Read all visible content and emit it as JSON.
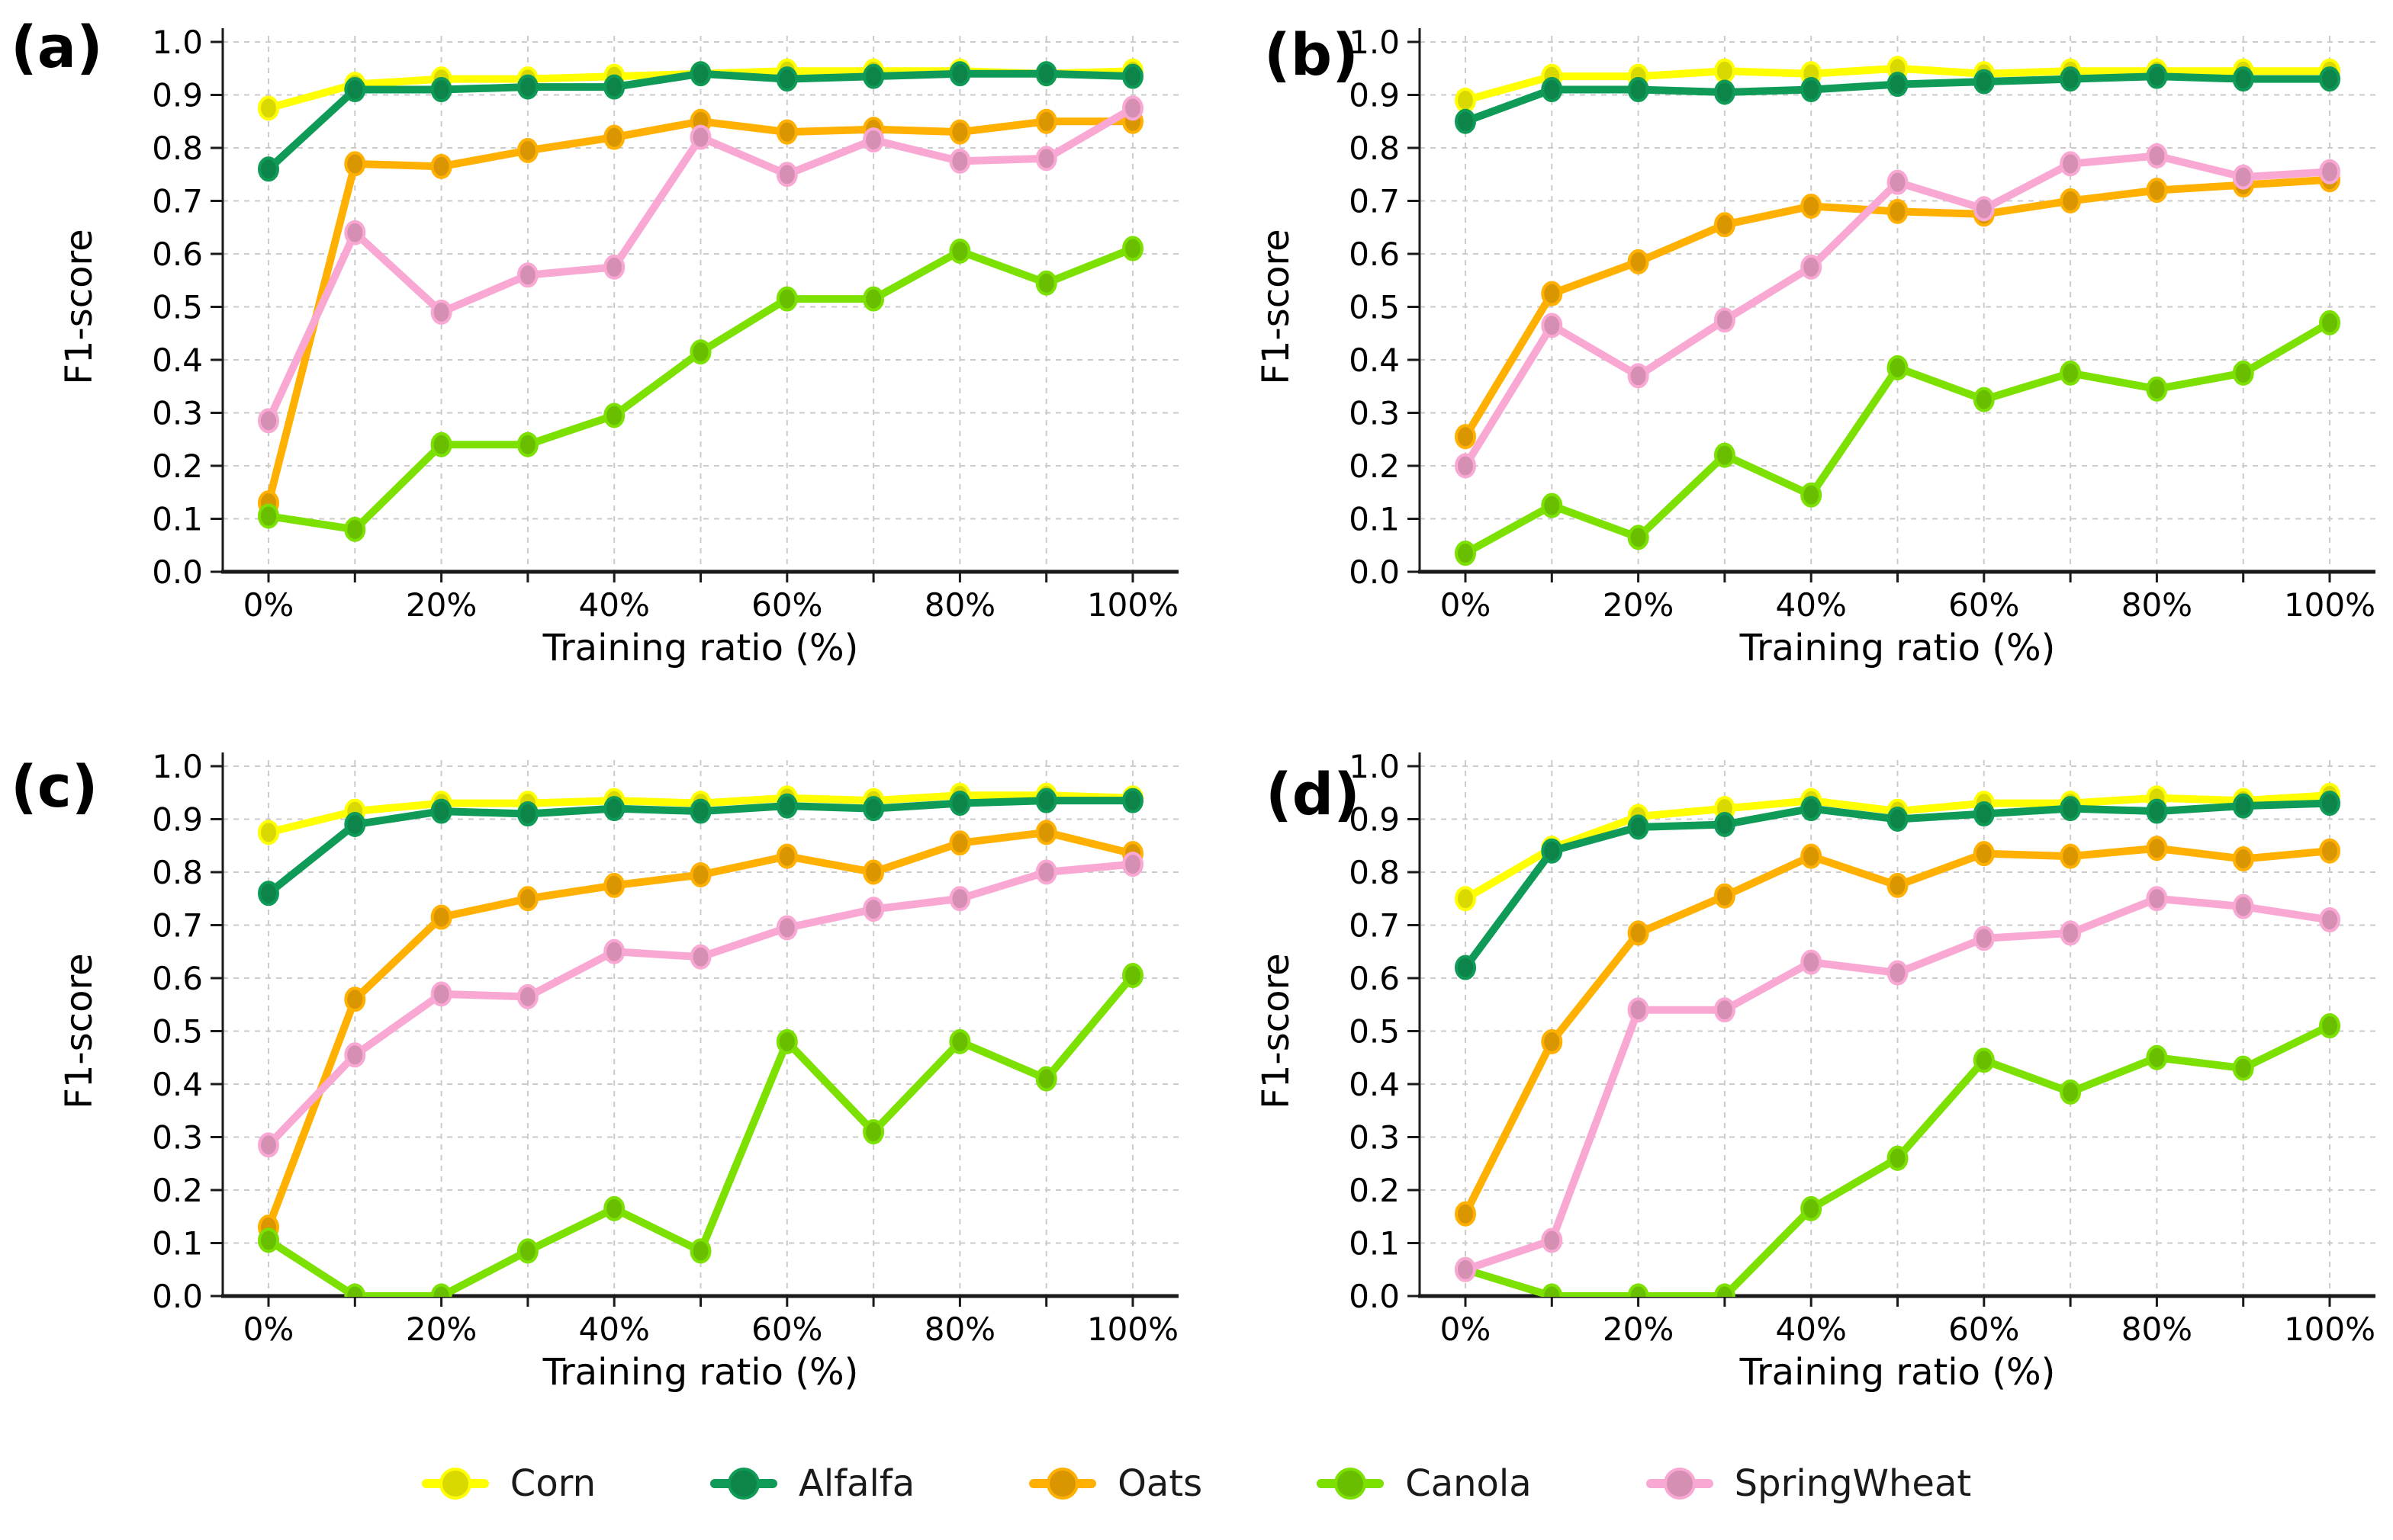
{
  "figure": {
    "background": "#ffffff",
    "text_color": "#000000",
    "grid_color": "#cbcbcb",
    "spine_color": "#1a1a1a"
  },
  "axes": {
    "xlabel": "Training ratio (%)",
    "ylabel": "F1-score",
    "x_ticks": [
      0,
      10,
      20,
      30,
      40,
      50,
      60,
      70,
      80,
      90,
      100
    ],
    "x_tick_labels": [
      "0%",
      "",
      "20%",
      "",
      "40%",
      "",
      "60%",
      "",
      "80%",
      "",
      "100%"
    ],
    "y_ticks": [
      0.0,
      0.1,
      0.2,
      0.3,
      0.4,
      0.5,
      0.6,
      0.7,
      0.8,
      0.9,
      1.0
    ],
    "y_tick_labels": [
      "0.0",
      "0.1",
      "0.2",
      "0.3",
      "0.4",
      "0.5",
      "0.6",
      "0.7",
      "0.8",
      "0.9",
      "1.0"
    ],
    "ylim": [
      0.0,
      1.0
    ],
    "grid": "dashed both axes"
  },
  "legend": {
    "position": "bottom-center",
    "entries": [
      {
        "label": "Corn",
        "color": "#ffff00"
      },
      {
        "label": "Alfalfa",
        "color": "#0f9b57"
      },
      {
        "label": "Oats",
        "color": "#ffb000"
      },
      {
        "label": "Canola",
        "color": "#7ce000"
      },
      {
        "label": "SpringWheat",
        "color": "#f9a8d3"
      }
    ]
  },
  "chart_data": [
    {
      "type": "line",
      "panel_label": "(a)",
      "xlabel": "Training ratio (%)",
      "ylabel": "F1-score",
      "x": [
        0,
        10,
        20,
        30,
        40,
        50,
        60,
        70,
        80,
        90,
        100
      ],
      "series": [
        {
          "name": "Corn",
          "color": "#ffff00",
          "values": [
            0.875,
            0.92,
            0.93,
            0.93,
            0.935,
            0.94,
            0.945,
            0.945,
            0.945,
            0.94,
            0.945
          ]
        },
        {
          "name": "Alfalfa",
          "color": "#0f9b57",
          "values": [
            0.76,
            0.91,
            0.91,
            0.915,
            0.915,
            0.94,
            0.93,
            0.935,
            0.94,
            0.94,
            0.935
          ]
        },
        {
          "name": "Oats",
          "color": "#ffb000",
          "values": [
            0.13,
            0.77,
            0.765,
            0.795,
            0.82,
            0.85,
            0.83,
            0.835,
            0.83,
            0.85,
            0.85
          ]
        },
        {
          "name": "Canola",
          "color": "#7ce000",
          "values": [
            0.105,
            0.08,
            0.24,
            0.24,
            0.295,
            0.415,
            0.515,
            0.515,
            0.605,
            0.545,
            0.61
          ]
        },
        {
          "name": "SpringWheat",
          "color": "#f9a8d3",
          "values": [
            0.285,
            0.64,
            0.49,
            0.56,
            0.575,
            0.82,
            0.75,
            0.815,
            0.775,
            0.78,
            0.875
          ]
        }
      ]
    },
    {
      "type": "line",
      "panel_label": "(b)",
      "xlabel": "Training ratio (%)",
      "ylabel": "F1-score",
      "x": [
        0,
        10,
        20,
        30,
        40,
        50,
        60,
        70,
        80,
        90,
        100
      ],
      "series": [
        {
          "name": "Corn",
          "color": "#ffff00",
          "values": [
            0.89,
            0.935,
            0.935,
            0.945,
            0.94,
            0.95,
            0.94,
            0.945,
            0.945,
            0.945,
            0.945
          ]
        },
        {
          "name": "Alfalfa",
          "color": "#0f9b57",
          "values": [
            0.85,
            0.91,
            0.91,
            0.905,
            0.91,
            0.92,
            0.925,
            0.93,
            0.935,
            0.93,
            0.93
          ]
        },
        {
          "name": "Oats",
          "color": "#ffb000",
          "values": [
            0.255,
            0.525,
            0.585,
            0.655,
            0.69,
            0.68,
            0.675,
            0.7,
            0.72,
            0.73,
            0.74
          ]
        },
        {
          "name": "Canola",
          "color": "#7ce000",
          "values": [
            0.035,
            0.125,
            0.065,
            0.22,
            0.145,
            0.385,
            0.325,
            0.375,
            0.345,
            0.375,
            0.47
          ]
        },
        {
          "name": "SpringWheat",
          "color": "#f9a8d3",
          "values": [
            0.2,
            0.465,
            0.37,
            0.475,
            0.575,
            0.735,
            0.685,
            0.77,
            0.785,
            0.745,
            0.755
          ]
        }
      ]
    },
    {
      "type": "line",
      "panel_label": "(c)",
      "xlabel": "Training ratio (%)",
      "ylabel": "F1-score",
      "x": [
        0,
        10,
        20,
        30,
        40,
        50,
        60,
        70,
        80,
        90,
        100
      ],
      "series": [
        {
          "name": "Corn",
          "color": "#ffff00",
          "values": [
            0.875,
            0.915,
            0.93,
            0.93,
            0.935,
            0.93,
            0.94,
            0.935,
            0.945,
            0.945,
            0.94
          ]
        },
        {
          "name": "Alfalfa",
          "color": "#0f9b57",
          "values": [
            0.76,
            0.89,
            0.915,
            0.91,
            0.92,
            0.915,
            0.925,
            0.92,
            0.93,
            0.935,
            0.935
          ]
        },
        {
          "name": "Oats",
          "color": "#ffb000",
          "values": [
            0.13,
            0.56,
            0.715,
            0.75,
            0.775,
            0.795,
            0.83,
            0.8,
            0.855,
            0.875,
            0.835
          ]
        },
        {
          "name": "Canola",
          "color": "#7ce000",
          "values": [
            0.105,
            0.0,
            0.0,
            0.085,
            0.165,
            0.085,
            0.48,
            0.31,
            0.48,
            0.41,
            0.605
          ]
        },
        {
          "name": "SpringWheat",
          "color": "#f9a8d3",
          "values": [
            0.285,
            0.455,
            0.57,
            0.565,
            0.65,
            0.64,
            0.695,
            0.73,
            0.75,
            0.8,
            0.815
          ]
        }
      ]
    },
    {
      "type": "line",
      "panel_label": "(d)",
      "xlabel": "Training ratio (%)",
      "ylabel": "F1-score",
      "x": [
        0,
        10,
        20,
        30,
        40,
        50,
        60,
        70,
        80,
        90,
        100
      ],
      "series": [
        {
          "name": "Corn",
          "color": "#ffff00",
          "values": [
            0.75,
            0.845,
            0.905,
            0.92,
            0.935,
            0.915,
            0.93,
            0.93,
            0.94,
            0.935,
            0.945
          ]
        },
        {
          "name": "Alfalfa",
          "color": "#0f9b57",
          "values": [
            0.62,
            0.84,
            0.885,
            0.89,
            0.92,
            0.9,
            0.91,
            0.92,
            0.915,
            0.925,
            0.93
          ]
        },
        {
          "name": "Oats",
          "color": "#ffb000",
          "values": [
            0.155,
            0.48,
            0.685,
            0.755,
            0.83,
            0.775,
            0.835,
            0.83,
            0.845,
            0.825,
            0.84
          ]
        },
        {
          "name": "Canola",
          "color": "#7ce000",
          "values": [
            0.05,
            0.0,
            0.0,
            0.0,
            0.165,
            0.26,
            0.445,
            0.385,
            0.45,
            0.43,
            0.51
          ]
        },
        {
          "name": "SpringWheat",
          "color": "#f9a8d3",
          "values": [
            0.05,
            0.105,
            0.54,
            0.54,
            0.63,
            0.61,
            0.675,
            0.685,
            0.75,
            0.735,
            0.71
          ]
        }
      ]
    }
  ]
}
